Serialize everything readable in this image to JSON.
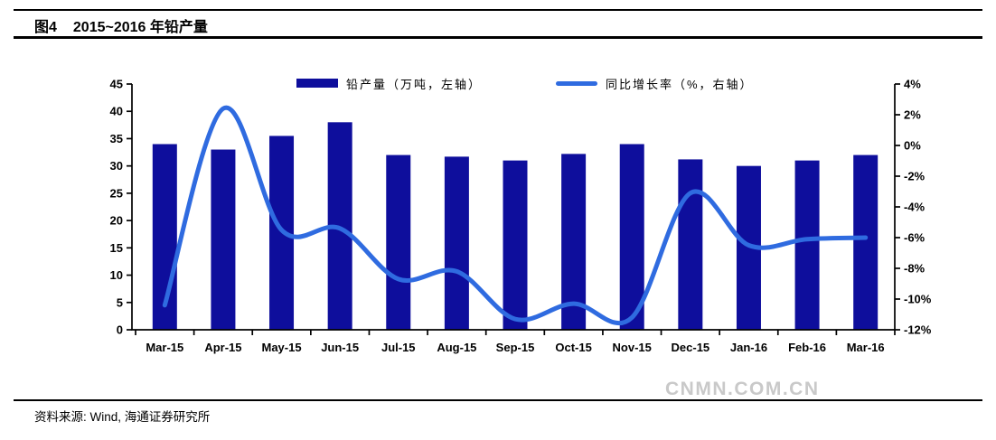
{
  "header": {
    "figure_label": "图4",
    "title": "2015~2016 年铅产量"
  },
  "legend": {
    "bar_label": "铅产量（万吨，左轴）",
    "line_label": "同比增长率（%，右轴）"
  },
  "footer": {
    "source": "资料来源: Wind, 海通证券研究所"
  },
  "watermark": "CNMN.COM.CN",
  "colors": {
    "bar": "#0E0E9C",
    "line": "#2F6BE0",
    "axis": "#000000",
    "watermark": "#c9c9c9"
  },
  "chart_data": {
    "type": "bar+line",
    "title": "图4 2015~2016 年铅产量",
    "categories": [
      "Mar-15",
      "Apr-15",
      "May-15",
      "Jun-15",
      "Jul-15",
      "Aug-15",
      "Sep-15",
      "Oct-15",
      "Nov-15",
      "Dec-15",
      "Jan-16",
      "Feb-16",
      "Mar-16"
    ],
    "series": [
      {
        "name": "铅产量（万吨，左轴）",
        "type": "bar",
        "axis": "left",
        "color": "#0E0E9C",
        "values": [
          34,
          33,
          35.5,
          38,
          32,
          31.7,
          31,
          32.2,
          34,
          31.2,
          30,
          31,
          32
        ]
      },
      {
        "name": "同比增长率（%，右轴）",
        "type": "line",
        "axis": "right",
        "color": "#2F6BE0",
        "values": [
          -10.4,
          2.4,
          -5.5,
          -5.4,
          -8.7,
          -8.2,
          -11.3,
          -10.3,
          -11.2,
          -3.1,
          -6.5,
          -6.1,
          -6.0
        ]
      }
    ],
    "left_axis": {
      "min": 0,
      "max": 45,
      "step": 5,
      "tick_labels": [
        "0",
        "5",
        "10",
        "15",
        "20",
        "25",
        "30",
        "35",
        "40",
        "45"
      ]
    },
    "right_axis": {
      "min": -12,
      "max": 4,
      "step": 2,
      "tick_labels": [
        "-12%",
        "-10%",
        "-8%",
        "-6%",
        "-4%",
        "-2%",
        "0%",
        "2%",
        "4%"
      ]
    },
    "grid": false,
    "legend_position": "top"
  }
}
